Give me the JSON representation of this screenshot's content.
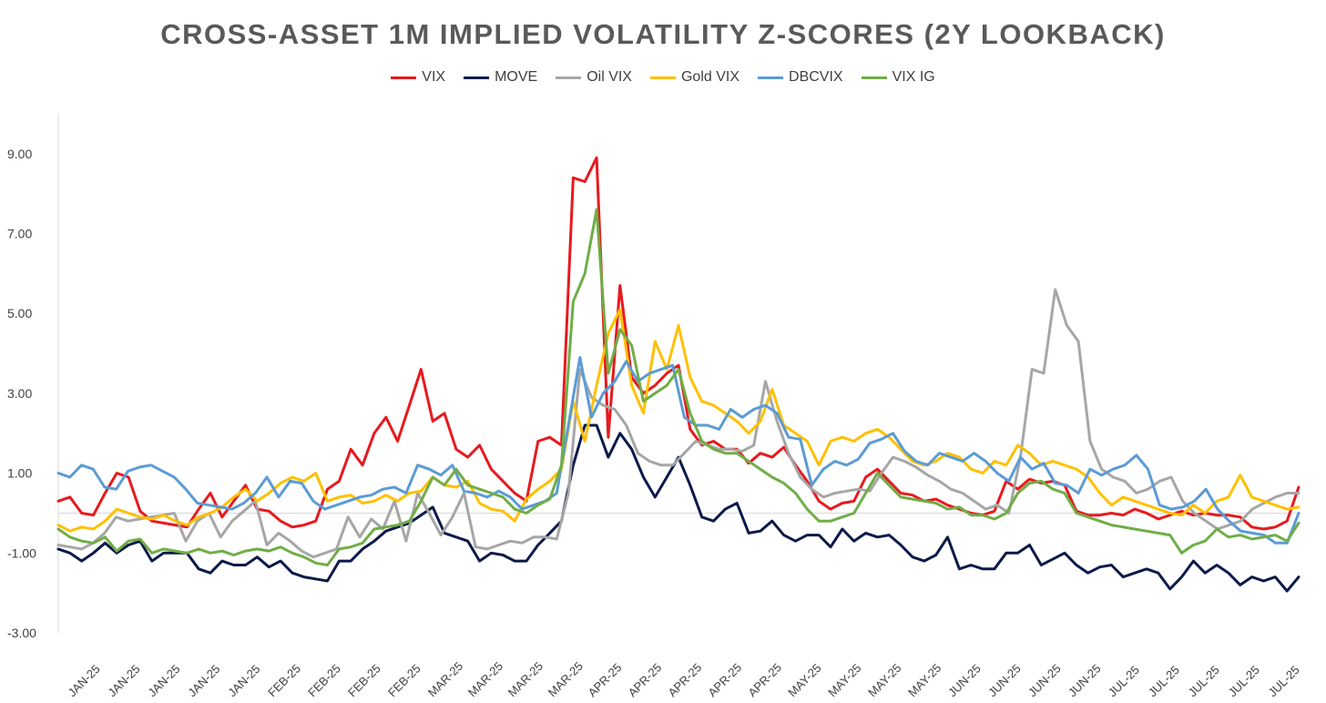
{
  "chart_data": {
    "type": "line",
    "title": "CROSS-ASSET 1M IMPLIED VOLATILITY Z-SCORES (2Y LOOKBACK)",
    "xlabel": "",
    "ylabel": "",
    "ylim": [
      -3,
      10
    ],
    "yticks": [
      9,
      7,
      5,
      3,
      1,
      -1,
      -3
    ],
    "ytick_labels": [
      "9.00",
      "7.00",
      "5.00",
      "3.00",
      "1.00",
      "-1.00",
      "-3.00"
    ],
    "xtick_labels": [
      "JAN-25",
      "JAN-25",
      "JAN-25",
      "JAN-25",
      "JAN-25",
      "FEB-25",
      "FEB-25",
      "FEB-25",
      "FEB-25",
      "MAR-25",
      "MAR-25",
      "MAR-25",
      "MAR-25",
      "APR-25",
      "APR-25",
      "APR-25",
      "APR-25",
      "APR-25",
      "MAY-25",
      "MAY-25",
      "MAY-25",
      "MAY-25",
      "JUN-25",
      "JUN-25",
      "JUN-25",
      "JUN-25",
      "JUL-25",
      "JUL-25",
      "JUL-25",
      "JUL-25",
      "JUL-25"
    ],
    "legend_position": "top-center",
    "series": [
      {
        "name": "VIX",
        "color": "#e8191d",
        "values": [
          0.3,
          0.4,
          0.0,
          -0.05,
          0.5,
          1.0,
          0.9,
          0.05,
          -0.2,
          -0.25,
          -0.3,
          -0.35,
          0.1,
          0.5,
          -0.1,
          0.3,
          0.7,
          0.1,
          0.05,
          -0.2,
          -0.35,
          -0.3,
          -0.2,
          0.6,
          0.8,
          1.6,
          1.2,
          2.0,
          2.4,
          1.8,
          2.7,
          3.6,
          2.3,
          2.5,
          1.6,
          1.4,
          1.7,
          1.1,
          0.8,
          0.5,
          0.3,
          1.8,
          1.9,
          1.7,
          8.4,
          8.3,
          8.9,
          1.9,
          5.7,
          3.4,
          3.0,
          3.2,
          3.5,
          3.7,
          2.1,
          1.7,
          1.8,
          1.6,
          1.6,
          1.25,
          1.5,
          1.4,
          1.65,
          1.2,
          0.8,
          0.3,
          0.1,
          0.25,
          0.3,
          0.9,
          1.1,
          0.8,
          0.5,
          0.45,
          0.3,
          0.35,
          0.2,
          0.1,
          0.0,
          -0.05,
          0.05,
          0.8,
          0.6,
          0.85,
          0.75,
          0.8,
          0.7,
          0.05,
          -0.05,
          -0.05,
          0.0,
          -0.05,
          0.1,
          0.0,
          -0.15,
          -0.05,
          0.05,
          -0.05,
          0.0,
          -0.05,
          -0.05,
          -0.1,
          -0.35,
          -0.4,
          -0.35,
          -0.2,
          0.65
        ]
      },
      {
        "name": "MOVE",
        "color": "#0c1a4a",
        "values": [
          -0.9,
          -1.0,
          -1.2,
          -1.0,
          -0.75,
          -1.0,
          -0.8,
          -0.7,
          -1.2,
          -1.0,
          -1.0,
          -1.0,
          -1.4,
          -1.5,
          -1.2,
          -1.3,
          -1.3,
          -1.1,
          -1.35,
          -1.2,
          -1.5,
          -1.6,
          -1.65,
          -1.7,
          -1.2,
          -1.2,
          -0.9,
          -0.7,
          -0.45,
          -0.35,
          -0.25,
          -0.05,
          0.15,
          -0.5,
          -0.6,
          -0.7,
          -1.2,
          -1.0,
          -1.05,
          -1.2,
          -1.2,
          -0.8,
          -0.5,
          -0.2,
          1.2,
          2.2,
          2.2,
          1.4,
          2.0,
          1.6,
          0.9,
          0.4,
          0.9,
          1.4,
          0.7,
          -0.1,
          -0.2,
          0.1,
          0.25,
          -0.5,
          -0.45,
          -0.2,
          -0.55,
          -0.7,
          -0.55,
          -0.55,
          -0.85,
          -0.4,
          -0.7,
          -0.5,
          -0.6,
          -0.55,
          -0.8,
          -1.1,
          -1.2,
          -1.05,
          -0.6,
          -1.4,
          -1.3,
          -1.4,
          -1.4,
          -1.0,
          -1.0,
          -0.8,
          -1.3,
          -1.15,
          -1.0,
          -1.3,
          -1.5,
          -1.35,
          -1.3,
          -1.6,
          -1.5,
          -1.4,
          -1.5,
          -1.9,
          -1.6,
          -1.2,
          -1.5,
          -1.3,
          -1.5,
          -1.8,
          -1.6,
          -1.7,
          -1.6,
          -1.95,
          -1.6
        ]
      },
      {
        "name": "Oil VIX",
        "color": "#a6a6a6",
        "values": [
          -0.8,
          -0.85,
          -0.9,
          -0.75,
          -0.5,
          -0.1,
          -0.2,
          -0.15,
          -0.1,
          -0.05,
          0.0,
          -0.7,
          -0.2,
          0.0,
          -0.6,
          -0.2,
          0.05,
          0.3,
          -0.8,
          -0.5,
          -0.7,
          -0.95,
          -1.1,
          -1.0,
          -0.9,
          -0.1,
          -0.6,
          -0.15,
          -0.4,
          0.3,
          -0.7,
          0.5,
          0.0,
          -0.55,
          -0.1,
          0.5,
          -0.85,
          -0.9,
          -0.8,
          -0.7,
          -0.75,
          -0.6,
          -0.6,
          -0.65,
          0.5,
          3.6,
          2.9,
          2.7,
          2.6,
          2.2,
          1.5,
          1.3,
          1.2,
          1.2,
          1.5,
          1.8,
          1.7,
          1.6,
          1.6,
          1.55,
          1.7,
          3.3,
          2.3,
          1.5,
          0.9,
          0.6,
          0.4,
          0.5,
          0.55,
          0.6,
          0.55,
          1.0,
          1.4,
          1.3,
          1.15,
          0.95,
          0.8,
          0.6,
          0.5,
          0.3,
          0.1,
          0.2,
          0.0,
          1.4,
          3.6,
          3.5,
          5.6,
          4.7,
          4.3,
          1.8,
          1.1,
          0.9,
          0.8,
          0.5,
          0.6,
          0.8,
          0.9,
          0.3,
          0.0,
          -0.2,
          -0.4,
          -0.3,
          -0.2,
          0.1,
          0.25,
          0.4,
          0.5,
          0.5
        ]
      },
      {
        "name": "Gold VIX",
        "color": "#ffc000",
        "values": [
          -0.3,
          -0.45,
          -0.35,
          -0.4,
          -0.2,
          0.1,
          0.0,
          -0.1,
          -0.15,
          -0.05,
          -0.2,
          -0.3,
          -0.1,
          0.0,
          0.15,
          0.4,
          0.6,
          0.3,
          0.5,
          0.75,
          0.9,
          0.8,
          1.0,
          0.3,
          0.4,
          0.45,
          0.25,
          0.3,
          0.45,
          0.3,
          0.5,
          0.55,
          0.9,
          0.7,
          0.65,
          0.8,
          0.25,
          0.1,
          0.05,
          -0.2,
          0.35,
          0.6,
          0.8,
          1.1,
          2.8,
          1.8,
          3.2,
          4.5,
          5.1,
          3.2,
          2.5,
          4.3,
          3.6,
          4.7,
          3.4,
          2.8,
          2.7,
          2.5,
          2.3,
          2.0,
          2.3,
          3.1,
          2.2,
          2.0,
          1.8,
          1.2,
          1.8,
          1.9,
          1.8,
          2.0,
          2.1,
          1.9,
          1.6,
          1.3,
          1.2,
          1.3,
          1.5,
          1.4,
          1.1,
          1.0,
          1.3,
          1.2,
          1.7,
          1.5,
          1.2,
          1.3,
          1.2,
          1.1,
          0.9,
          0.5,
          0.2,
          0.4,
          0.3,
          0.2,
          0.1,
          0.0,
          -0.05,
          0.2,
          0.0,
          0.3,
          0.4,
          0.95,
          0.4,
          0.3,
          0.2,
          0.1,
          0.15
        ]
      },
      {
        "name": "DBCVIX",
        "color": "#5b9bd5",
        "values": [
          1.0,
          0.9,
          1.2,
          1.1,
          0.65,
          0.6,
          1.05,
          1.15,
          1.2,
          1.05,
          0.9,
          0.6,
          0.25,
          0.2,
          0.15,
          0.1,
          0.25,
          0.5,
          0.9,
          0.4,
          0.8,
          0.75,
          0.3,
          0.1,
          0.2,
          0.3,
          0.4,
          0.45,
          0.6,
          0.65,
          0.5,
          1.2,
          1.1,
          0.95,
          1.2,
          0.55,
          0.5,
          0.4,
          0.55,
          0.4,
          0.1,
          0.2,
          0.3,
          0.5,
          2.2,
          3.9,
          2.4,
          3.0,
          3.3,
          3.8,
          3.3,
          3.5,
          3.6,
          3.7,
          2.4,
          2.2,
          2.2,
          2.1,
          2.6,
          2.4,
          2.6,
          2.7,
          2.5,
          1.9,
          1.85,
          0.7,
          1.1,
          1.3,
          1.2,
          1.35,
          1.75,
          1.85,
          2.0,
          1.55,
          1.3,
          1.2,
          1.5,
          1.4,
          1.3,
          1.5,
          1.3,
          1.0,
          0.8,
          1.4,
          1.1,
          1.25,
          0.75,
          0.7,
          0.5,
          1.1,
          0.95,
          1.1,
          1.2,
          1.45,
          1.1,
          0.2,
          0.1,
          0.15,
          0.3,
          0.6,
          0.1,
          -0.2,
          -0.45,
          -0.5,
          -0.55,
          -0.75,
          -0.75,
          0.0
        ]
      },
      {
        "name": "VIX IG",
        "color": "#70ad47",
        "values": [
          -0.4,
          -0.6,
          -0.7,
          -0.75,
          -0.6,
          -0.95,
          -0.7,
          -0.65,
          -1.0,
          -0.9,
          -0.95,
          -1.0,
          -0.9,
          -1.0,
          -0.95,
          -1.05,
          -0.95,
          -0.9,
          -0.95,
          -0.85,
          -1.0,
          -1.1,
          -1.25,
          -1.3,
          -0.9,
          -0.85,
          -0.75,
          -0.4,
          -0.35,
          -0.3,
          -0.2,
          0.3,
          0.9,
          0.7,
          1.1,
          0.7,
          0.6,
          0.5,
          0.4,
          0.1,
          0.0,
          0.2,
          0.35,
          1.2,
          5.3,
          6.0,
          7.6,
          3.5,
          4.6,
          4.2,
          2.8,
          3.0,
          3.2,
          3.6,
          2.5,
          1.8,
          1.6,
          1.5,
          1.5,
          1.3,
          1.1,
          0.9,
          0.75,
          0.5,
          0.1,
          -0.2,
          -0.2,
          -0.1,
          0.0,
          0.5,
          1.0,
          0.7,
          0.4,
          0.35,
          0.3,
          0.25,
          0.1,
          0.15,
          -0.05,
          -0.05,
          -0.15,
          0.0,
          0.5,
          0.75,
          0.8,
          0.6,
          0.5,
          0.0,
          -0.1,
          -0.2,
          -0.3,
          -0.35,
          -0.4,
          -0.45,
          -0.5,
          -0.55,
          -1.0,
          -0.8,
          -0.7,
          -0.4,
          -0.6,
          -0.55,
          -0.65,
          -0.6,
          -0.55,
          -0.7,
          -0.25
        ]
      }
    ]
  }
}
